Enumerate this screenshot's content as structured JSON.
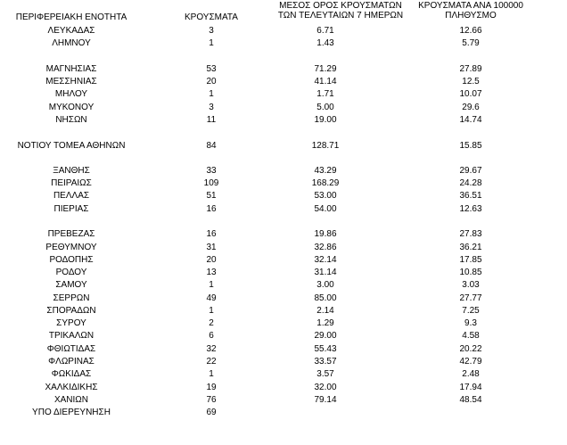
{
  "table": {
    "headers": {
      "region": "ΠΕΡΙΦΕΡΕΙΑΚΗ ΕΝΟΤΗΤΑ",
      "cases": "ΚΡΟΥΣΜΑΤΑ",
      "avg_line1": "ΜΕΣΟΣ ΟΡΟΣ ΚΡΟΥΣΜΑΤΩΝ",
      "avg_line2": "ΤΩΝ ΤΕΛΕΥΤΑΙΩΝ 7 ΗΜΕΡΩΝ",
      "per_line1": "ΚΡΟΥΣΜΑΤΑ ΑΝΑ 100000",
      "per_line2": "ΠΛΗΘΥΣΜΟ"
    },
    "rows": [
      {
        "region": "ΛΕΥΚΑΔΑΣ",
        "cases": "3",
        "avg": "6.71",
        "per": "12.66"
      },
      {
        "region": "ΛΗΜΝΟΥ",
        "cases": "1",
        "avg": "1.43",
        "per": "5.79"
      },
      {
        "region": "ΜΑΓΝΗΣΙΑΣ",
        "cases": "53",
        "avg": "71.29",
        "per": "27.89"
      },
      {
        "region": "ΜΕΣΣΗΝΙΑΣ",
        "cases": "20",
        "avg": "41.14",
        "per": "12.5"
      },
      {
        "region": "ΜΗΛΟΥ",
        "cases": "1",
        "avg": "1.71",
        "per": "10.07"
      },
      {
        "region": "ΜΥΚΟΝΟΥ",
        "cases": "3",
        "avg": "5.00",
        "per": "29.6"
      },
      {
        "region": "ΝΗΣΩΝ",
        "cases": "11",
        "avg": "19.00",
        "per": "14.74"
      },
      {
        "region": "ΝΟΤΙΟΥ ΤΟΜΕΑ ΑΘΗΝΩΝ",
        "cases": "84",
        "avg": "128.71",
        "per": "15.85"
      },
      {
        "region": "ΞΑΝΘΗΣ",
        "cases": "33",
        "avg": "43.29",
        "per": "29.67"
      },
      {
        "region": "ΠΕΙΡΑΙΩΣ",
        "cases": "109",
        "avg": "168.29",
        "per": "24.28"
      },
      {
        "region": "ΠΕΛΛΑΣ",
        "cases": "51",
        "avg": "53.00",
        "per": "36.51"
      },
      {
        "region": "ΠΙΕΡΙΑΣ",
        "cases": "16",
        "avg": "54.00",
        "per": "12.63"
      },
      {
        "region": "ΠΡΕΒΕΖΑΣ",
        "cases": "16",
        "avg": "19.86",
        "per": "27.83"
      },
      {
        "region": "ΡΕΘΥΜΝΟΥ",
        "cases": "31",
        "avg": "32.86",
        "per": "36.21"
      },
      {
        "region": "ΡΟΔΟΠΗΣ",
        "cases": "20",
        "avg": "32.14",
        "per": "17.85"
      },
      {
        "region": "ΡΟΔΟΥ",
        "cases": "13",
        "avg": "31.14",
        "per": "10.85"
      },
      {
        "region": "ΣΑΜΟΥ",
        "cases": "1",
        "avg": "3.00",
        "per": "3.03"
      },
      {
        "region": "ΣΕΡΡΩΝ",
        "cases": "49",
        "avg": "85.00",
        "per": "27.77"
      },
      {
        "region": "ΣΠΟΡΑΔΩΝ",
        "cases": "1",
        "avg": "2.14",
        "per": "7.25"
      },
      {
        "region": "ΣΥΡΟΥ",
        "cases": "2",
        "avg": "1.29",
        "per": "9.3"
      },
      {
        "region": "ΤΡΙΚΑΛΩΝ",
        "cases": "6",
        "avg": "29.00",
        "per": "4.58"
      },
      {
        "region": "ΦΘΙΩΤΙΔΑΣ",
        "cases": "32",
        "avg": "55.43",
        "per": "20.22"
      },
      {
        "region": "ΦΛΩΡΙΝΑΣ",
        "cases": "22",
        "avg": "33.57",
        "per": "42.79"
      },
      {
        "region": "ΦΩΚΙΔΑΣ",
        "cases": "1",
        "avg": "3.57",
        "per": "2.48"
      },
      {
        "region": "ΧΑΛΚΙΔΙΚΗΣ",
        "cases": "19",
        "avg": "32.00",
        "per": "17.94"
      },
      {
        "region": "ΧΑΝΙΩΝ",
        "cases": "76",
        "avg": "79.14",
        "per": "48.54"
      },
      {
        "region": "ΥΠΟ ΔΙΕΡΕΥΝΗΣΗ",
        "cases": "69",
        "avg": "",
        "per": ""
      }
    ]
  }
}
